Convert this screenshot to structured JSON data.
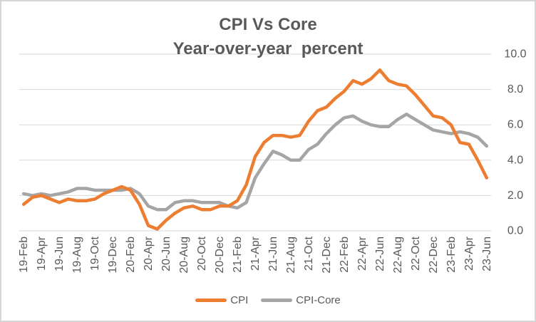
{
  "header": {
    "title": "CPI Vs Core",
    "subtitle": "Year-over-year  percent"
  },
  "chart_data": {
    "type": "line",
    "title": "CPI Vs Core",
    "subtitle": "Year-over-year  percent",
    "ylim": [
      0,
      10
    ],
    "y_ticks": [
      0.0,
      2.0,
      4.0,
      6.0,
      8.0,
      10.0
    ],
    "y_tick_labels": [
      "0.0",
      "2.0",
      "4.0",
      "6.0",
      "8.0",
      "10.0"
    ],
    "grid": "horizontal",
    "legend_position": "bottom",
    "axis_color": "#595959",
    "grid_color": "#d9d9d9",
    "categories": [
      "19-Feb",
      "19-Mar",
      "19-Apr",
      "19-May",
      "19-Jun",
      "19-Jul",
      "19-Aug",
      "19-Sep",
      "19-Oct",
      "19-Nov",
      "19-Dec",
      "20-Jan",
      "20-Feb",
      "20-Mar",
      "20-Apr",
      "20-May",
      "20-Jun",
      "20-Jul",
      "20-Aug",
      "20-Sep",
      "20-Oct",
      "20-Nov",
      "20-Dec",
      "21-Jan",
      "21-Feb",
      "21-Mar",
      "21-Apr",
      "21-May",
      "21-Jun",
      "21-Jul",
      "21-Aug",
      "21-Sep",
      "21-Oct",
      "21-Nov",
      "21-Dec",
      "22-Jan",
      "22-Feb",
      "22-Mar",
      "22-Apr",
      "22-May",
      "22-Jun",
      "22-Jul",
      "22-Aug",
      "22-Sep",
      "22-Oct",
      "22-Nov",
      "22-Dec",
      "23-Jan",
      "23-Feb",
      "23-Mar",
      "23-Apr",
      "23-May",
      "23-Jun"
    ],
    "x_tick_labels": [
      "19-Feb",
      "19-Apr",
      "19-Jun",
      "19-Aug",
      "19-Oct",
      "19-Dec",
      "20-Feb",
      "20-Apr",
      "20-Jun",
      "20-Aug",
      "20-Oct",
      "20-Dec",
      "21-Feb",
      "21-Apr",
      "21-Jun",
      "21-Aug",
      "21-Oct",
      "21-Dec",
      "22-Feb",
      "22-Apr",
      "22-Jun",
      "22-Aug",
      "22-Oct",
      "22-Dec",
      "23-Feb",
      "23-Apr",
      "23-Jun"
    ],
    "x_tick_every": 2,
    "series": [
      {
        "name": "CPI",
        "color": "#ED7D31",
        "values": [
          1.5,
          1.9,
          2.0,
          1.8,
          1.6,
          1.8,
          1.7,
          1.7,
          1.8,
          2.1,
          2.3,
          2.5,
          2.3,
          1.5,
          0.3,
          0.1,
          0.6,
          1.0,
          1.3,
          1.4,
          1.2,
          1.2,
          1.4,
          1.4,
          1.7,
          2.6,
          4.2,
          5.0,
          5.4,
          5.4,
          5.3,
          5.4,
          6.2,
          6.8,
          7.0,
          7.5,
          7.9,
          8.5,
          8.3,
          8.6,
          9.1,
          8.5,
          8.3,
          8.2,
          7.7,
          7.1,
          6.5,
          6.4,
          6.0,
          5.0,
          4.9,
          4.0,
          3.0
        ]
      },
      {
        "name": "CPI-Core",
        "color": "#A5A5A5",
        "values": [
          2.1,
          2.0,
          2.1,
          2.0,
          2.1,
          2.2,
          2.4,
          2.4,
          2.3,
          2.3,
          2.3,
          2.3,
          2.4,
          2.1,
          1.4,
          1.2,
          1.2,
          1.6,
          1.7,
          1.7,
          1.6,
          1.6,
          1.6,
          1.4,
          1.3,
          1.6,
          3.0,
          3.8,
          4.5,
          4.3,
          4.0,
          4.0,
          4.6,
          4.9,
          5.5,
          6.0,
          6.4,
          6.5,
          6.2,
          6.0,
          5.9,
          5.9,
          6.3,
          6.6,
          6.3,
          6.0,
          5.7,
          5.6,
          5.5,
          5.6,
          5.5,
          5.3,
          4.8
        ]
      }
    ]
  }
}
